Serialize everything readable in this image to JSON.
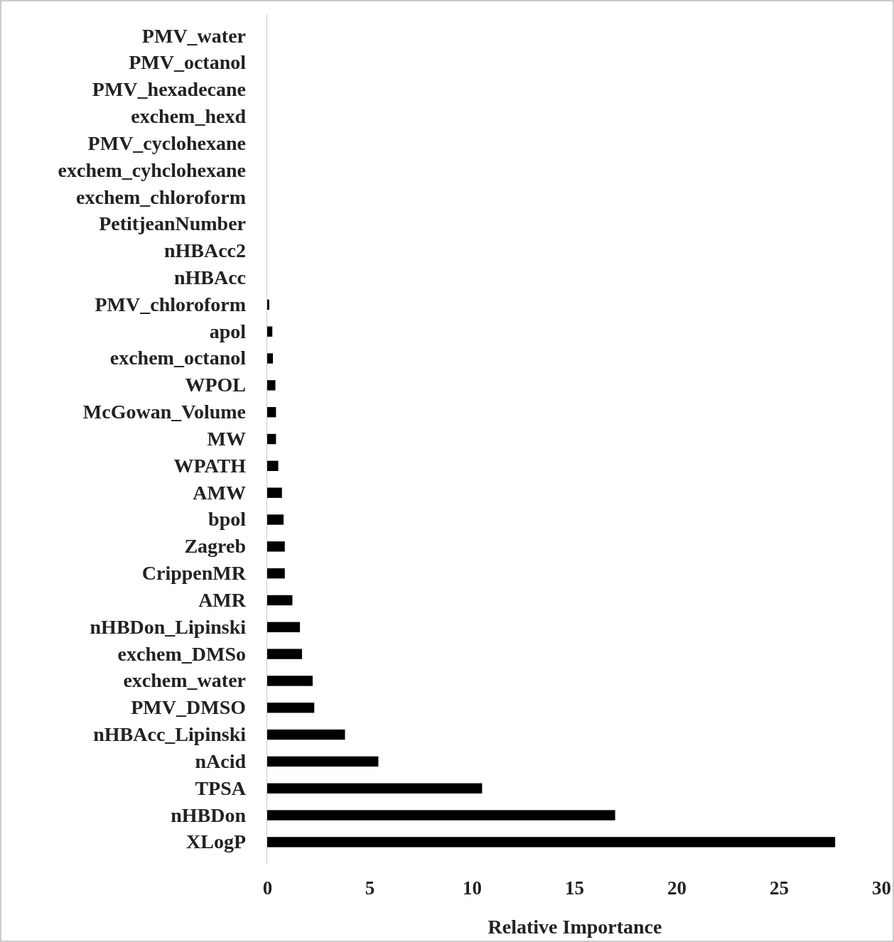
{
  "chart_data": {
    "type": "bar",
    "orientation": "horizontal",
    "xlabel": "Relative Importance",
    "categories": [
      "PMV_water",
      "PMV_octanol",
      "PMV_hexadecane",
      "exchem_hexd",
      "PMV_cyclohexane",
      "exchem_cyhclohexane",
      "exchem_chloroform",
      "PetitjeanNumber",
      "nHBAcc2",
      "nHBAcc",
      "PMV_chloroform",
      "apol",
      "exchem_octanol",
      "WPOL",
      "McGowan_Volume",
      "MW",
      "WPATH",
      "AMW",
      "bpol",
      "Zagreb",
      "CrippenMR",
      "AMR",
      "nHBDon_Lipinski",
      "exchem_DMSo",
      "exchem_water",
      "PMV_DMSO",
      "nHBAcc_Lipinski",
      "nAcid",
      "TPSA",
      "nHBDon",
      "XLogP"
    ],
    "values": [
      0,
      0,
      0,
      0,
      0,
      0,
      0,
      0,
      0,
      0,
      0.1,
      0.25,
      0.28,
      0.4,
      0.43,
      0.43,
      0.54,
      0.72,
      0.8,
      0.86,
      0.86,
      1.23,
      1.6,
      1.7,
      2.22,
      2.3,
      3.8,
      5.43,
      10.5,
      17.0,
      27.75
    ],
    "color": "#000000",
    "xlim": [
      0,
      30
    ],
    "xticks": [
      0,
      5,
      10,
      15,
      20,
      25,
      30
    ],
    "grid": false
  }
}
